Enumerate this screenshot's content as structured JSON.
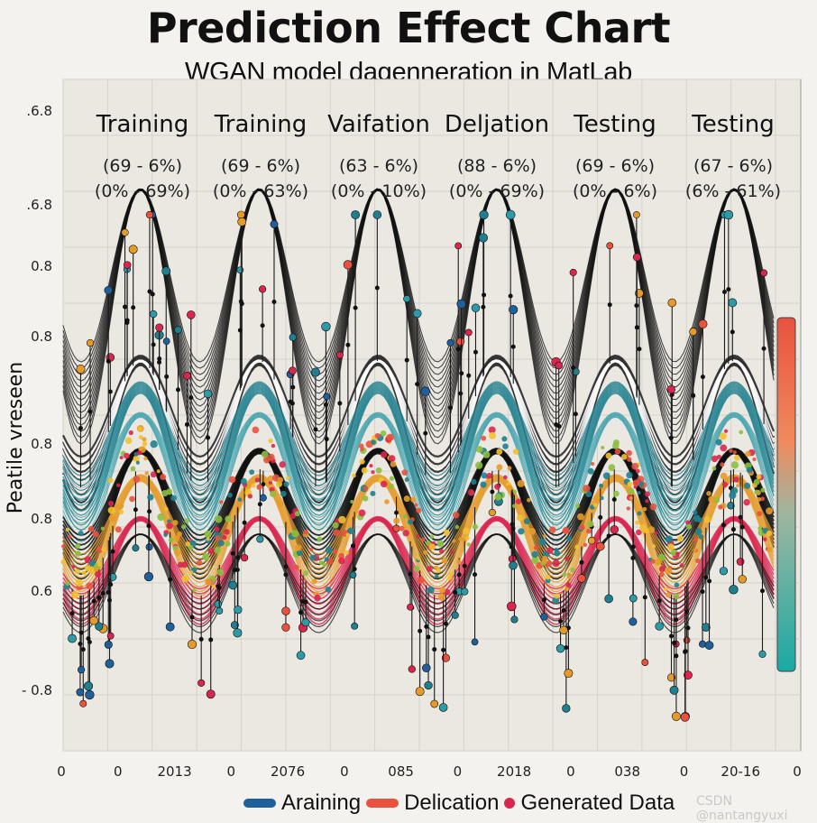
{
  "chart_data": {
    "type": "line",
    "title": "Prediction Effect Chart",
    "subtitle": "WGAN model    dagenneration in MatLab",
    "ylabel": "Peatile vreseen",
    "y_ticks": [
      ".6.8",
      ".6.8",
      "0.8",
      "0.8",
      "0.8",
      "0.8",
      "0.6",
      "- 0.8"
    ],
    "x_ticks": [
      "0",
      "0",
      "2013",
      "0",
      "2076",
      "0",
      "085",
      "0",
      "2018",
      "0",
      "038",
      "0",
      "20-16",
      "0"
    ],
    "segments": [
      {
        "title": "Training",
        "range_1": "(69 - 6%)",
        "range_2": "(0% - 69%)"
      },
      {
        "title": "Training",
        "range_1": "(69 - 6%)",
        "range_2": "(0% - 63%)"
      },
      {
        "title": "Vaifation",
        "range_1": "(63 - 6%)",
        "range_2": "(0% - 10%)"
      },
      {
        "title": "Deljation",
        "range_1": "(88 - 6%)",
        "range_2": "(0% - 69%)"
      },
      {
        "title": "Testing",
        "range_1": "(69 - 6%)",
        "range_2": "(0% - 6%)"
      },
      {
        "title": "Testing",
        "range_1": "(67 - 6%)",
        "range_2": "(6% - 61%)"
      }
    ],
    "series": [
      {
        "name": "Araining",
        "color": "#1f5f9a"
      },
      {
        "name": "Delication",
        "color": "#e8523f"
      },
      {
        "name": "Generated Data",
        "color": "#d9264f"
      }
    ],
    "wave": {
      "cycles": 6,
      "y_range": [
        0.6,
        0.8
      ]
    },
    "colorbar_colors": [
      "#e8523f",
      "#f08a5d",
      "#9fb6a0",
      "#1aa9a4"
    ]
  },
  "watermark": "CSDN @nantangyuxi"
}
